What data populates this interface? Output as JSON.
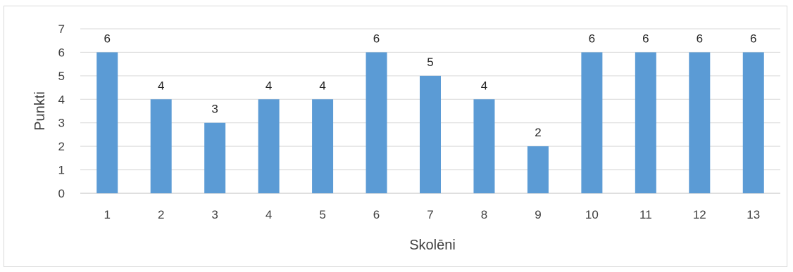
{
  "chart_data": {
    "type": "bar",
    "title": "",
    "xlabel": "Skolēni",
    "ylabel": "Punkti",
    "categories": [
      "1",
      "2",
      "3",
      "4",
      "5",
      "6",
      "7",
      "8",
      "9",
      "10",
      "11",
      "12",
      "13"
    ],
    "values": [
      6,
      4,
      3,
      4,
      4,
      6,
      5,
      4,
      2,
      6,
      6,
      6,
      6
    ],
    "ylim": [
      0,
      7
    ],
    "yticks": [
      0,
      1,
      2,
      3,
      4,
      5,
      6,
      7
    ],
    "grid": true,
    "legend": "none",
    "data_labels": true,
    "bar_color": "#5b9bd5"
  }
}
